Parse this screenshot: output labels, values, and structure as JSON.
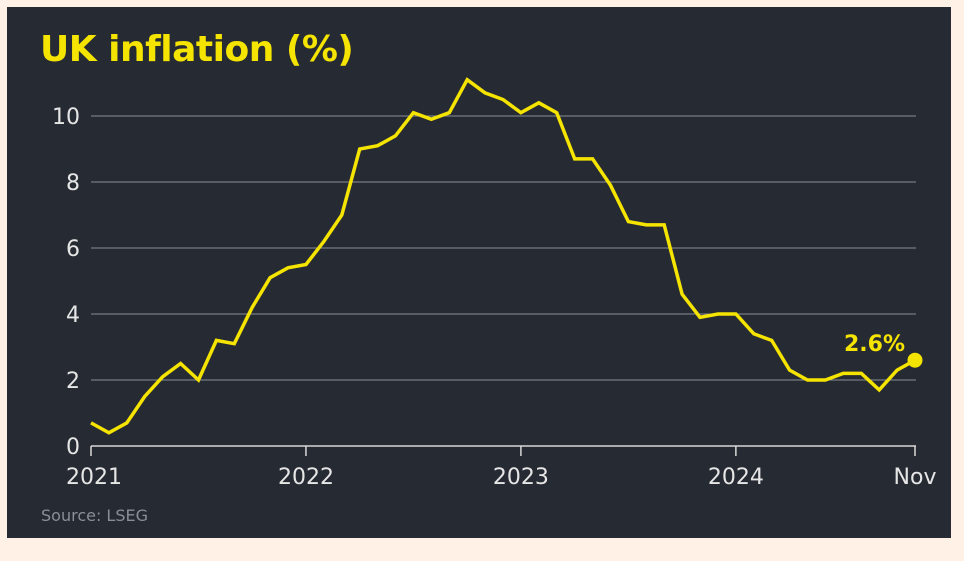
{
  "chart_data": {
    "type": "line",
    "title": "UK inflation (%)",
    "source": "Source: LSEG",
    "xlabel": "",
    "ylabel": "",
    "ylim": [
      0,
      11
    ],
    "yticks": [
      0,
      2,
      4,
      6,
      8,
      10
    ],
    "xticks": [
      {
        "label": "2021",
        "date": "2021-01"
      },
      {
        "label": "2022",
        "date": "2022-01"
      },
      {
        "label": "2023",
        "date": "2023-01"
      },
      {
        "label": "2024",
        "date": "2024-01"
      },
      {
        "label": "Nov",
        "date": "2024-11"
      }
    ],
    "grid": true,
    "line_color": "#f5e400",
    "series": [
      {
        "x": [
          "2021-01",
          "2021-02",
          "2021-03",
          "2021-04",
          "2021-05",
          "2021-06",
          "2021-07",
          "2021-08",
          "2021-09",
          "2021-10",
          "2021-11",
          "2021-12",
          "2022-01",
          "2022-02",
          "2022-03",
          "2022-04",
          "2022-05",
          "2022-06",
          "2022-07",
          "2022-08",
          "2022-09",
          "2022-10",
          "2022-11",
          "2022-12",
          "2023-01",
          "2023-02",
          "2023-03",
          "2023-04",
          "2023-05",
          "2023-06",
          "2023-07",
          "2023-08",
          "2023-09",
          "2023-10",
          "2023-11",
          "2023-12",
          "2024-01",
          "2024-02",
          "2024-03",
          "2024-04",
          "2024-05",
          "2024-06",
          "2024-07",
          "2024-08",
          "2024-09",
          "2024-10",
          "2024-11"
        ],
        "values": [
          0.7,
          0.4,
          0.7,
          1.5,
          2.1,
          2.5,
          2.0,
          3.2,
          3.1,
          4.2,
          5.1,
          5.4,
          5.5,
          6.2,
          7.0,
          9.0,
          9.1,
          9.4,
          10.1,
          9.9,
          10.1,
          11.1,
          10.7,
          10.5,
          10.1,
          10.4,
          10.1,
          8.7,
          8.7,
          7.9,
          6.8,
          6.7,
          6.7,
          4.6,
          3.9,
          4.0,
          4.0,
          3.4,
          3.2,
          2.3,
          2.0,
          2.0,
          2.2,
          2.2,
          1.7,
          2.3,
          2.6
        ]
      }
    ],
    "annotations": [
      {
        "text": "2.6%",
        "date": "2024-11",
        "value": 2.6
      }
    ]
  }
}
